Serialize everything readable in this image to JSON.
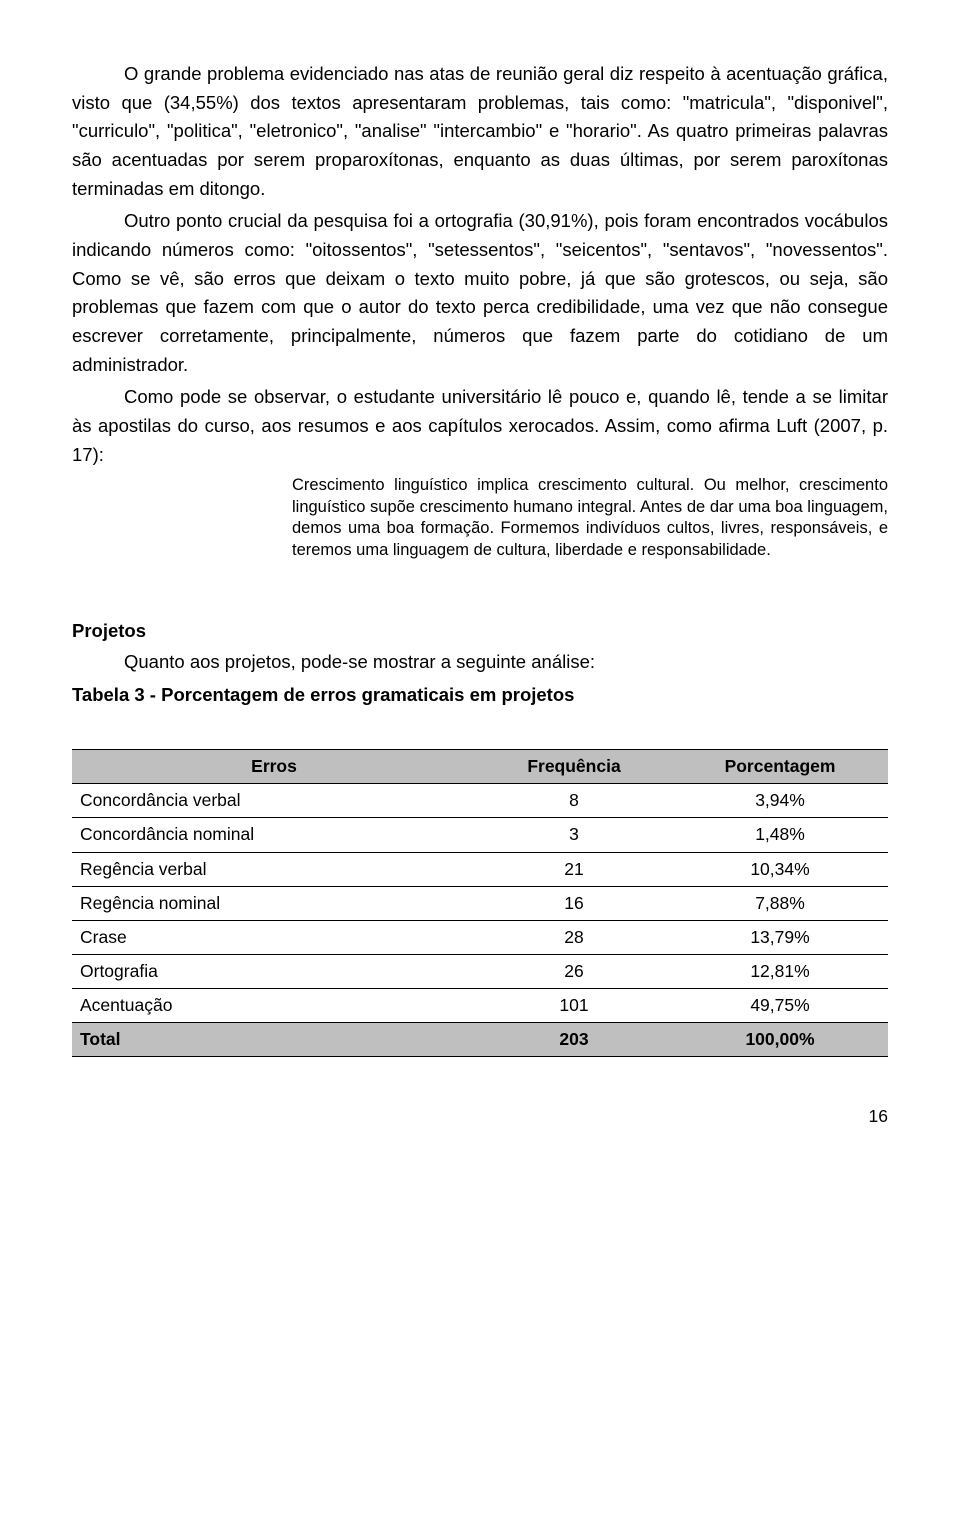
{
  "paragraphs": {
    "p1": "O grande problema evidenciado nas atas de reunião geral diz respeito à acentuação gráfica, visto que (34,55%) dos textos apresentaram problemas, tais como: \"matricula\", \"disponivel\", \"curriculo\", \"politica\", \"eletronico\", \"analise\" \"intercambio\" e \"horario\". As quatro primeiras palavras são acentuadas por serem proparoxítonas, enquanto as duas últimas, por serem paroxítonas terminadas em ditongo.",
    "p2": "Outro ponto crucial da pesquisa foi a ortografia (30,91%), pois foram encontrados vocábulos indicando números como: \"oitossentos\", \"setessentos\", \"seicentos\", \"sentavos\", \"novessentos\". Como se vê, são erros que deixam o texto muito pobre, já que são grotescos, ou seja, são problemas que fazem com que o autor do texto perca credibilidade, uma vez que não consegue escrever corretamente, principalmente, números que fazem parte do cotidiano de um administrador.",
    "p3": "Como pode se observar, o estudante universitário lê pouco e, quando lê, tende a se limitar às apostilas do curso, aos resumos e aos capítulos xerocados. Assim, como afirma Luft (2007, p. 17):",
    "quote": "Crescimento linguístico implica crescimento cultural. Ou melhor, crescimento linguístico supõe crescimento humano integral. Antes de dar uma boa linguagem, demos uma boa formação. Formemos indivíduos cultos, livres, responsáveis, e teremos uma linguagem de cultura, liberdade e responsabilidade."
  },
  "section": {
    "title": "Projetos",
    "intro": "Quanto aos projetos, pode-se mostrar a seguinte análise:",
    "table_caption": "Tabela 3 -  Porcentagem de erros gramaticais em projetos"
  },
  "table": {
    "type": "table",
    "header_bg": "#bfbfbf",
    "border_color": "#000000",
    "font_size": 17.5,
    "columns": [
      "Erros",
      "Frequência",
      "Porcentagem"
    ],
    "rows": [
      {
        "label": "Concordância verbal",
        "freq": "8",
        "pct": "3,94%"
      },
      {
        "label": "Concordância nominal",
        "freq": "3",
        "pct": "1,48%"
      },
      {
        "label": "Regência verbal",
        "freq": "21",
        "pct": "10,34%"
      },
      {
        "label": "Regência nominal",
        "freq": "16",
        "pct": "7,88%"
      },
      {
        "label": "Crase",
        "freq": "28",
        "pct": "13,79%"
      },
      {
        "label": "Ortografia",
        "freq": "26",
        "pct": "12,81%"
      },
      {
        "label": "Acentuação",
        "freq": "101",
        "pct": "49,75%"
      }
    ],
    "total": {
      "label": "Total",
      "freq": "203",
      "pct": "100,00%"
    }
  },
  "page_number": "16"
}
